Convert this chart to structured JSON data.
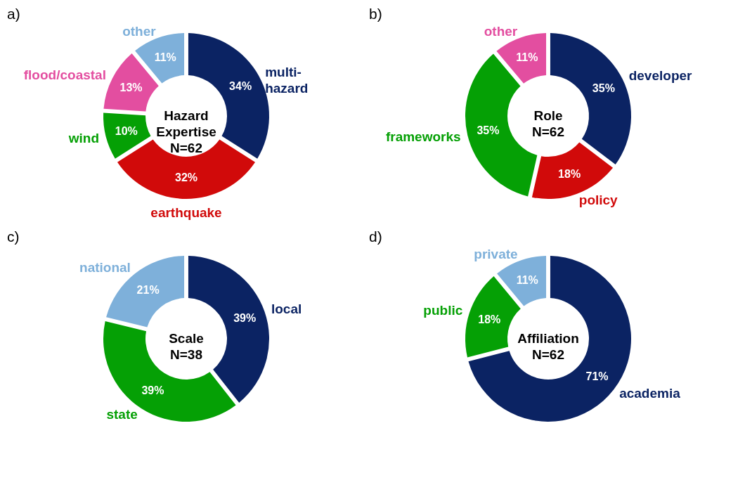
{
  "chart_data": [
    {
      "type": "donut",
      "title": "Hazard Expertise",
      "subtitle": "N=62",
      "annotations": [
        "a)"
      ],
      "categories": [
        "multi-hazard",
        "earthquake",
        "wind",
        "flood/coastal",
        "other"
      ],
      "values": [
        34,
        32,
        10,
        13,
        11
      ],
      "colors": [
        "#0b2363",
        "#d10a0a",
        "#05a005",
        "#e34ea0",
        "#7eb0da"
      ],
      "value_labels": [
        "34%",
        "32%",
        "10%",
        "13%",
        "11%"
      ],
      "legend": false
    },
    {
      "type": "donut",
      "title": "Role",
      "subtitle": "N=62",
      "annotations": [
        "b)"
      ],
      "categories": [
        "developer",
        "policy",
        "frameworks",
        "other"
      ],
      "values": [
        35,
        18,
        35,
        11
      ],
      "colors": [
        "#0b2363",
        "#d10a0a",
        "#05a005",
        "#e34ea0"
      ],
      "value_labels": [
        "35%",
        "18%",
        "35%",
        "11%"
      ],
      "legend": false
    },
    {
      "type": "donut",
      "title": "Scale",
      "subtitle": "N=38",
      "annotations": [
        "c)"
      ],
      "categories": [
        "local",
        "state",
        "national"
      ],
      "values": [
        39,
        39,
        21
      ],
      "colors": [
        "#0b2363",
        "#05a005",
        "#7eb0da"
      ],
      "value_labels": [
        "39%",
        "39%",
        "21%"
      ],
      "legend": false
    },
    {
      "type": "donut",
      "title": "Affiliation",
      "subtitle": "N=62",
      "annotations": [
        "d)"
      ],
      "categories": [
        "academia",
        "public",
        "private"
      ],
      "values": [
        71,
        18,
        11
      ],
      "colors": [
        "#0b2363",
        "#05a005",
        "#7eb0da"
      ],
      "value_labels": [
        "71%",
        "18%",
        "11%"
      ],
      "legend": false
    }
  ]
}
